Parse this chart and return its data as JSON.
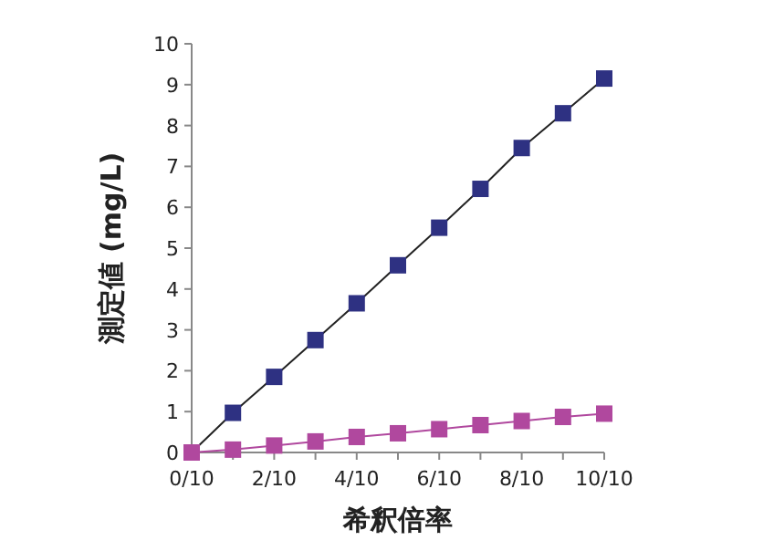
{
  "chart_data": {
    "type": "line",
    "xlabel": "希釈倍率",
    "ylabel": "測定値 (mg/L)",
    "categories": [
      "0/10",
      null,
      "2/10",
      null,
      "4/10",
      null,
      "6/10",
      null,
      "8/10",
      null,
      "10/10"
    ],
    "series": [
      {
        "color": "#2e3182",
        "values": [
          0,
          0.97,
          1.85,
          2.75,
          3.65,
          4.58,
          5.5,
          6.45,
          7.45,
          8.3,
          9.15
        ]
      },
      {
        "color": "#b0489e",
        "values": [
          0,
          0.07,
          0.17,
          0.27,
          0.38,
          0.47,
          0.57,
          0.67,
          0.77,
          0.87,
          0.95
        ]
      }
    ],
    "ylim": [
      0,
      10
    ],
    "yticks": [
      0,
      1,
      2,
      3,
      4,
      5,
      6,
      7,
      8,
      9,
      10
    ],
    "marker": "square"
  }
}
